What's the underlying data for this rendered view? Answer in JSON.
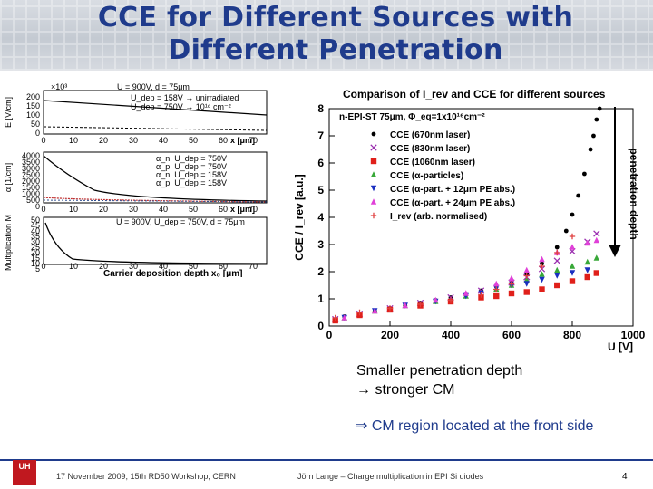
{
  "title": {
    "line1": "CCE for Different Sources with",
    "line2": "Different Penetration"
  },
  "colors": {
    "title": "#1f3b8c",
    "footer": "#1f3b8c",
    "logo": "#c0181f"
  },
  "left_plots": {
    "efield": {
      "ylabel": "E [V/cm]",
      "exponent": "×10³",
      "yticks": [
        "200",
        "150",
        "100",
        "50",
        "0"
      ],
      "xticks": [
        "0",
        "10",
        "20",
        "30",
        "40",
        "50",
        "60",
        "70"
      ],
      "xlabel": "x [μm]",
      "legend_header": "U = 900V, d = 75μm",
      "legend": [
        "U_dep = 158V → unirradiated",
        "U_dep = 750V → 10¹⁶ cm⁻²"
      ]
    },
    "mult": {
      "ylabel": "α [1/cm]",
      "yticks": [
        "4000",
        "3500",
        "3000",
        "2500",
        "2000",
        "1500",
        "1000",
        "500",
        "0"
      ],
      "xticks": [
        "0",
        "10",
        "20",
        "30",
        "40",
        "50",
        "60",
        "70"
      ],
      "xlabel": "x [μm]",
      "legend": [
        "α_n, U_dep = 750V",
        "α_p, U_dep = 750V",
        "α_n, U_dep = 158V",
        "α_p, U_dep = 158V"
      ]
    },
    "mfactor": {
      "ylabel": "Multiplication M",
      "header": "U = 900V, U_dep = 750V, d = 75μm",
      "yticks": [
        "50",
        "45",
        "40",
        "35",
        "30",
        "25",
        "20",
        "15",
        "10",
        "5"
      ],
      "xticks": [
        "0",
        "10",
        "20",
        "30",
        "40",
        "50",
        "60",
        "70"
      ],
      "xlabel": "Carrier deposition depth x₀ [μm]"
    }
  },
  "main_plot_text": {
    "title": "Comparison of I_rev and CCE for different sources",
    "ylabel": "CCE / I_rev [a.u.]",
    "xlabel": "U [V]",
    "header": "n-EPI-ST 75μm, Φ_eq=1x10¹⁶cm⁻²",
    "legend": [
      "CCE (670nm laser)",
      "CCE (830nm laser)",
      "CCE (1060nm laser)",
      "CCE (α-particles)",
      "CCE (α-part. + 12μm PE abs.)",
      "CCE (α-part. + 24μm PE abs.)",
      "I_rev (arb. normalised)"
    ]
  },
  "chart_data": {
    "type": "scatter",
    "title": "Comparison of I_rev and CCE for different sources",
    "xlabel": "U [V]",
    "ylabel": "CCE / I_rev [a.u.]",
    "xlim": [
      0,
      1000
    ],
    "ylim": [
      0,
      8
    ],
    "xticks": [
      0,
      200,
      400,
      600,
      800,
      1000
    ],
    "yticks": [
      0,
      1,
      2,
      3,
      4,
      5,
      6,
      7,
      8
    ],
    "legend_position": "top-left",
    "series": [
      {
        "name": "CCE (670nm laser)",
        "color": "#000000",
        "marker": "circle",
        "x": [
          20,
          50,
          100,
          150,
          200,
          250,
          300,
          350,
          400,
          450,
          500,
          550,
          600,
          650,
          700,
          750,
          780,
          800,
          820,
          840,
          860,
          870,
          880,
          890
        ],
        "y": [
          0.2,
          0.35,
          0.45,
          0.55,
          0.65,
          0.75,
          0.85,
          0.95,
          1.05,
          1.15,
          1.3,
          1.45,
          1.65,
          1.9,
          2.3,
          2.9,
          3.5,
          4.1,
          4.8,
          5.6,
          6.5,
          7.0,
          7.6,
          8.0
        ]
      },
      {
        "name": "CCE (830nm laser)",
        "color": "#9b2fb0",
        "marker": "x",
        "x": [
          20,
          100,
          200,
          300,
          400,
          500,
          600,
          650,
          700,
          750,
          800,
          850,
          880
        ],
        "y": [
          0.25,
          0.45,
          0.65,
          0.85,
          1.05,
          1.3,
          1.6,
          1.8,
          2.1,
          2.4,
          2.75,
          3.1,
          3.4
        ]
      },
      {
        "name": "CCE (1060nm laser)",
        "color": "#e0201a",
        "marker": "square",
        "x": [
          20,
          100,
          200,
          300,
          400,
          500,
          550,
          600,
          650,
          700,
          750,
          800,
          850,
          880
        ],
        "y": [
          0.2,
          0.4,
          0.6,
          0.75,
          0.9,
          1.05,
          1.1,
          1.2,
          1.25,
          1.35,
          1.5,
          1.65,
          1.8,
          1.95
        ]
      },
      {
        "name": "CCE (α-particles)",
        "color": "#38a838",
        "marker": "triangle-up",
        "x": [
          50,
          150,
          250,
          350,
          450,
          550,
          600,
          650,
          700,
          750,
          800,
          850,
          880
        ],
        "y": [
          0.3,
          0.55,
          0.75,
          0.9,
          1.1,
          1.35,
          1.5,
          1.7,
          1.9,
          2.05,
          2.2,
          2.35,
          2.5
        ]
      },
      {
        "name": "CCE (α-part. + 12μm PE abs.)",
        "color": "#1a2fc0",
        "marker": "triangle-down",
        "x": [
          50,
          150,
          250,
          350,
          450,
          500,
          550,
          600,
          650,
          700,
          750,
          800,
          850
        ],
        "y": [
          0.3,
          0.55,
          0.75,
          0.9,
          1.1,
          1.2,
          1.4,
          1.5,
          1.55,
          1.7,
          1.85,
          1.95,
          2.05
        ]
      },
      {
        "name": "CCE (α-part. + 24μm PE abs.)",
        "color": "#e040d8",
        "marker": "triangle-up",
        "x": [
          50,
          150,
          250,
          350,
          450,
          550,
          600,
          650,
          700,
          750,
          800,
          850,
          880
        ],
        "y": [
          0.3,
          0.55,
          0.75,
          0.95,
          1.2,
          1.55,
          1.75,
          2.05,
          2.45,
          2.7,
          2.9,
          3.05,
          3.15
        ]
      },
      {
        "name": "I_rev (arb. normalised)",
        "color": "#e04040",
        "marker": "plus",
        "x": [
          20,
          100,
          200,
          300,
          400,
          500,
          550,
          600,
          650,
          700,
          750,
          800
        ],
        "y": [
          0.3,
          0.5,
          0.65,
          0.8,
          0.95,
          1.15,
          1.35,
          1.55,
          1.85,
          2.2,
          2.7,
          3.3
        ]
      }
    ]
  },
  "penetration_label": "penetration depth",
  "caption": {
    "line1": "Smaller penetration depth",
    "line2": "→ stronger CM"
  },
  "conclusion": "⇒ CM region located at the front side",
  "footer": {
    "logo": "UH",
    "date": "17 November 2009,  15th RD50 Workshop, CERN",
    "author": "Jörn Lange – Charge multiplication in EPI Si diodes",
    "page": "4"
  }
}
